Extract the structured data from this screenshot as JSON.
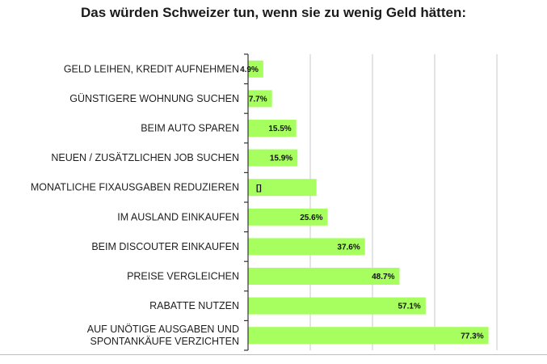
{
  "chart_data": {
    "type": "bar",
    "orientation": "horizontal",
    "title": "Das würden Schweizer tun, wenn sie zu wenig Geld hätten:",
    "categories": [
      [
        "GELD LEIHEN, KREDIT AUFNEHMEN"
      ],
      [
        "GÜNSTIGERE WOHNUNG SUCHEN"
      ],
      [
        "BEIM AUTO SPAREN"
      ],
      [
        "NEUEN / ZUSÄTZLICHEN JOB SUCHEN"
      ],
      [
        "MONATLICHE FIXAUSGABEN  REDUZIEREN"
      ],
      [
        "IM AUSLAND EINKAUFEN"
      ],
      [
        "BEIM DISCOUTER EINKAUFEN"
      ],
      [
        "PREISE VERGLEICHEN"
      ],
      [
        "RABATTE  NUTZEN"
      ],
      [
        "AUF UNÖTIGE AUSGABEN UND",
        "SPONTANKÄUFE VERZICHTEN"
      ]
    ],
    "values": [
      4.9,
      7.7,
      15.5,
      15.9,
      22.0,
      25.6,
      37.6,
      48.7,
      57.1,
      77.3
    ],
    "data_labels": [
      "4.9%",
      "7.7%",
      "15.5%",
      "15.9%",
      "[]",
      "25.6%",
      "37.6%",
      "48.7%",
      "57.1%",
      "77.3%"
    ],
    "xlim": [
      0,
      100
    ],
    "gridlines": [
      20,
      40,
      60,
      80
    ],
    "bar_color": "#a6ff5f",
    "grid_color": "#c8c8c8"
  }
}
